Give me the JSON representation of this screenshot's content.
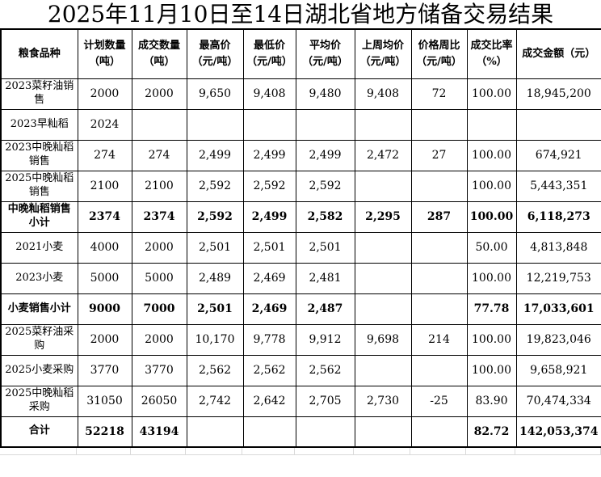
{
  "title": "2025年11月10日至14日湖北省地方储备交易结果",
  "table": {
    "headers": [
      "粮食品种",
      "计划数量\n（吨）",
      "成交数量\n（吨）",
      "最高价\n（元/吨）",
      "最低价\n（元/吨）",
      "平均价\n（元/吨）",
      "上周均价\n（元/吨）",
      "价格周比\n（元/吨）",
      "成交比率\n（%）",
      "成交金额（元）"
    ],
    "rows": [
      {
        "bold": false,
        "cells": [
          "2023菜籽油销售",
          "2000",
          "2000",
          "9,650",
          "9,408",
          "9,480",
          "9,408",
          "72",
          "100.00",
          "18,945,200"
        ]
      },
      {
        "bold": false,
        "cells": [
          "2023早籼稻",
          "2024",
          "",
          "",
          "",
          "",
          "",
          "",
          "",
          ""
        ]
      },
      {
        "bold": false,
        "cells": [
          "2023中晚籼稻销售",
          "274",
          "274",
          "2,499",
          "2,499",
          "2,499",
          "2,472",
          "27",
          "100.00",
          "674,921"
        ]
      },
      {
        "bold": false,
        "cells": [
          "2025中晚籼稻销售",
          "2100",
          "2100",
          "2,592",
          "2,592",
          "2,592",
          "",
          "",
          "100.00",
          "5,443,351"
        ]
      },
      {
        "bold": true,
        "cells": [
          "中晚籼稻销售小计",
          "2374",
          "2374",
          "2,592",
          "2,499",
          "2,582",
          "2,295",
          "287",
          "100.00",
          "6,118,273"
        ]
      },
      {
        "bold": false,
        "cells": [
          "2021小麦",
          "4000",
          "2000",
          "2,501",
          "2,501",
          "2,501",
          "",
          "",
          "50.00",
          "4,813,848"
        ]
      },
      {
        "bold": false,
        "cells": [
          "2023小麦",
          "5000",
          "5000",
          "2,489",
          "2,469",
          "2,481",
          "",
          "",
          "100.00",
          "12,219,753"
        ]
      },
      {
        "bold": true,
        "cells": [
          "小麦销售小计",
          "9000",
          "7000",
          "2,501",
          "2,469",
          "2,487",
          "",
          "",
          "77.78",
          "17,033,601"
        ]
      },
      {
        "bold": false,
        "cells": [
          "2025菜籽油采购",
          "2000",
          "2000",
          "10,170",
          "9,778",
          "9,912",
          "9,698",
          "214",
          "100.00",
          "19,823,046"
        ]
      },
      {
        "bold": false,
        "cells": [
          "2025小麦采购",
          "3770",
          "3770",
          "2,562",
          "2,562",
          "2,562",
          "",
          "",
          "100.00",
          "9,658,921"
        ]
      },
      {
        "bold": false,
        "cells": [
          "2025中晚籼稻采购",
          "31050",
          "26050",
          "2,742",
          "2,642",
          "2,705",
          "2,730",
          "-25",
          "83.90",
          "70,474,334"
        ]
      },
      {
        "bold": true,
        "cells": [
          "合计",
          "52218",
          "43194",
          "",
          "",
          "",
          "",
          "",
          "82.72",
          "142,053,374"
        ]
      }
    ]
  }
}
